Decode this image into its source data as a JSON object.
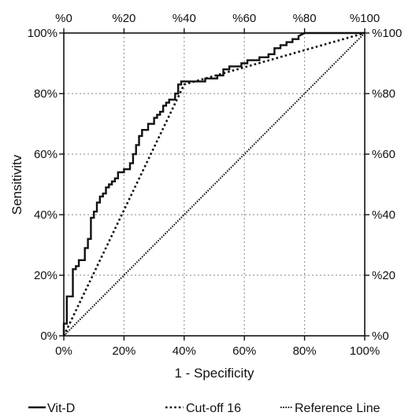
{
  "chart_data": {
    "type": "line",
    "xlabel": "1 - Specificity",
    "ylabel": "Sensitivitv",
    "xlim": [
      0,
      100
    ],
    "ylim": [
      0,
      100
    ],
    "grid": true,
    "bottom_ticks": [
      "0%",
      "20%",
      "40%",
      "60%",
      "80%",
      "100%"
    ],
    "left_ticks": [
      "0%",
      "20%",
      "40%",
      "60%",
      "80%",
      "100%"
    ],
    "top_ticks": [
      "%0",
      "%20",
      "%40",
      "%60",
      "%80",
      "%100"
    ],
    "right_ticks": [
      "%0",
      "%20",
      "%40",
      "%60",
      "%80",
      "%100"
    ],
    "tick_values": [
      0,
      20,
      40,
      60,
      80,
      100
    ],
    "legend_position": "bottom",
    "series": [
      {
        "name": "Vit-D",
        "style": "solid",
        "color": "#111111",
        "x": [
          0,
          0,
          1,
          1,
          2,
          2,
          3,
          3,
          4,
          4,
          5,
          5,
          6,
          6,
          7,
          7,
          8,
          8,
          9,
          9,
          10,
          10,
          11,
          11,
          12,
          12,
          13,
          13,
          14,
          14,
          15,
          15,
          16,
          16,
          17,
          17,
          18,
          18,
          20,
          20,
          22,
          22,
          23,
          23,
          24,
          24,
          25,
          25,
          26,
          26,
          28,
          28,
          30,
          30,
          31,
          31,
          32,
          32,
          33,
          33,
          34,
          34,
          35,
          35,
          37,
          37,
          38,
          38,
          39,
          39,
          40,
          47,
          47,
          51,
          51,
          53,
          53,
          55,
          55,
          59,
          59,
          61,
          61,
          65,
          65,
          68,
          68,
          70,
          70,
          72,
          72,
          74,
          74,
          76,
          76,
          78,
          78,
          80,
          100
        ],
        "y": [
          0,
          4,
          4,
          13,
          13,
          13,
          13,
          22,
          22,
          23,
          23,
          25,
          25,
          25,
          25,
          29,
          29,
          32,
          32,
          39,
          39,
          41,
          41,
          44,
          44,
          46,
          46,
          47,
          47,
          49,
          49,
          50,
          50,
          51,
          51,
          52,
          52,
          54,
          54,
          55,
          55,
          57,
          57,
          60,
          60,
          63,
          63,
          66,
          66,
          68,
          68,
          70,
          70,
          72,
          72,
          73,
          73,
          74,
          74,
          76,
          76,
          77,
          77,
          78,
          78,
          80,
          80,
          83,
          83,
          84,
          84,
          84,
          85,
          85,
          86,
          86,
          88,
          88,
          89,
          89,
          90,
          90,
          91,
          91,
          92,
          92,
          93,
          93,
          95,
          95,
          96,
          96,
          97,
          97,
          98,
          98,
          99,
          100,
          100
        ]
      },
      {
        "name": "Cut-off 16",
        "style": "dotted",
        "color": "#111111",
        "x": [
          0,
          40,
          100
        ],
        "y": [
          0,
          83,
          100
        ]
      },
      {
        "name": "Reference Line",
        "style": "dotted-fine",
        "color": "#111111",
        "x": [
          0,
          100
        ],
        "y": [
          0,
          100
        ]
      }
    ]
  }
}
